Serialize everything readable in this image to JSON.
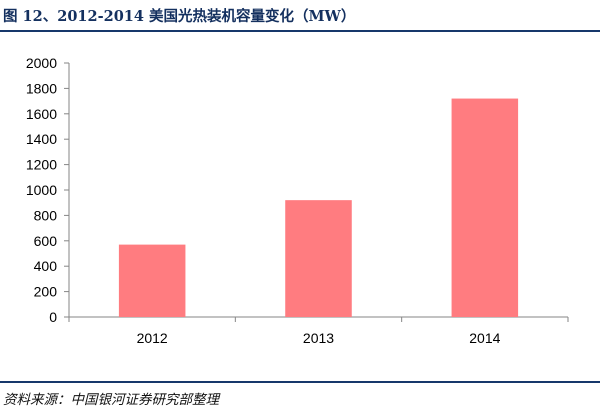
{
  "title": "图 12、2012-2014 美国光热装机容量变化（MW）",
  "source": "资料来源：中国银河证券研究部整理",
  "colors": {
    "bar": "#ff7c80",
    "rule": "#17386b",
    "title": "#14305f",
    "axis": "#868686"
  },
  "chart_data": {
    "type": "bar",
    "title": "图 12、2012-2014 美国光热装机容量变化（MW）",
    "categories": [
      "2012",
      "2013",
      "2014"
    ],
    "values": [
      570,
      920,
      1720
    ],
    "xlabel": "",
    "ylabel": "",
    "ylim": [
      0,
      2000
    ],
    "yticks": [
      0,
      200,
      400,
      600,
      800,
      1000,
      1200,
      1400,
      1600,
      1800,
      2000
    ],
    "grid": false,
    "legend": "none"
  }
}
